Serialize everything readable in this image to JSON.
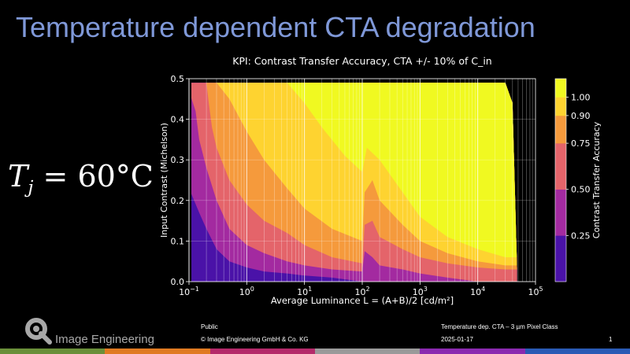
{
  "slide": {
    "title": "Temperature dependent CTA degradation",
    "formula": {
      "base": "T",
      "subscript": "j",
      "rest": "= 60°C"
    }
  },
  "footer": {
    "brand": "Image Engineering",
    "classification": "Public",
    "copyright": "© Image Engineering GmbH & Co. KG",
    "doc_title": "Temperature dep. CTA – 3 µm Pixel Class",
    "date": "2025-01-17",
    "page_number": "1",
    "stripe_colors": [
      "#6a8f3a",
      "#e07a22",
      "#b52a6a",
      "#9a9a9a",
      "#8b2ab0",
      "#2a5ab5"
    ]
  },
  "chart_data": {
    "type": "heatmap",
    "title": "KPI: Contrast Transfer Accuracy, CTA +/- 10% of C_in",
    "xlabel": "Average Luminance L = (A+B)/2 [cd/m²]",
    "ylabel": "Input Contrast (Michelson)",
    "x_scale": "log",
    "xlim": [
      0.1,
      100000
    ],
    "ylim": [
      0,
      0.5
    ],
    "x_ticks": [
      {
        "value": 0.1,
        "base": "10",
        "exp": "−1"
      },
      {
        "value": 1,
        "base": "10",
        "exp": "0"
      },
      {
        "value": 10,
        "base": "10",
        "exp": "1"
      },
      {
        "value": 100,
        "base": "10",
        "exp": "2"
      },
      {
        "value": 1000,
        "base": "10",
        "exp": "3"
      },
      {
        "value": 10000,
        "base": "10",
        "exp": "4"
      },
      {
        "value": 100000,
        "base": "10",
        "exp": "5"
      }
    ],
    "y_ticks": [
      "0.0",
      "0.1",
      "0.2",
      "0.3",
      "0.4",
      "0.5"
    ],
    "grid": true,
    "colorbar": {
      "label": "Contrast Transfer Accuracy",
      "ticks": [
        "0.25",
        "0.50",
        "0.75",
        "0.90",
        "1.00"
      ],
      "levels": [
        0,
        0.25,
        0.5,
        0.75,
        0.9,
        1.0,
        1.1
      ],
      "colors": [
        "#4a12a8",
        "#a32aa0",
        "#e4646a",
        "#f59a3c",
        "#fed330",
        "#f0f921"
      ]
    },
    "coverage": {
      "luminance_range": [
        0.11,
        40000
      ],
      "input_contrast_max": 0.49,
      "high_luminance_edge": [
        [
          30000,
          0.49
        ],
        [
          40000,
          0.44
        ],
        [
          48000,
          0.03
        ]
      ]
    },
    "contour_boundaries": [
      {
        "level": 0.25,
        "points": [
          [
            0.1,
            0.23
          ],
          [
            0.15,
            0.17
          ],
          [
            0.2,
            0.13
          ],
          [
            0.3,
            0.08
          ],
          [
            0.5,
            0.05
          ],
          [
            1,
            0.035
          ],
          [
            2,
            0.025
          ],
          [
            5,
            0.02
          ],
          [
            10,
            0.015
          ],
          [
            30,
            0.01
          ],
          [
            100,
            0.0
          ]
        ]
      },
      {
        "level": 0.5,
        "points": [
          [
            0.1,
            0.47
          ],
          [
            0.13,
            0.42
          ],
          [
            0.15,
            0.35
          ],
          [
            0.2,
            0.28
          ],
          [
            0.3,
            0.2
          ],
          [
            0.5,
            0.13
          ],
          [
            1,
            0.09
          ],
          [
            2,
            0.07
          ],
          [
            5,
            0.05
          ],
          [
            10,
            0.04
          ],
          [
            30,
            0.03
          ],
          [
            100,
            0.025
          ],
          [
            110,
            0.075
          ],
          [
            150,
            0.06
          ],
          [
            200,
            0.04
          ],
          [
            500,
            0.03
          ],
          [
            1000,
            0.02
          ],
          [
            3000,
            0.01
          ],
          [
            10000,
            0.0
          ]
        ]
      },
      {
        "level": 0.75,
        "points": [
          [
            0.2,
            0.49
          ],
          [
            0.22,
            0.44
          ],
          [
            0.25,
            0.38
          ],
          [
            0.3,
            0.33
          ],
          [
            0.5,
            0.25
          ],
          [
            1,
            0.19
          ],
          [
            2,
            0.15
          ],
          [
            5,
            0.12
          ],
          [
            10,
            0.09
          ],
          [
            30,
            0.06
          ],
          [
            100,
            0.045
          ],
          [
            110,
            0.14
          ],
          [
            150,
            0.15
          ],
          [
            200,
            0.11
          ],
          [
            500,
            0.08
          ],
          [
            1000,
            0.06
          ],
          [
            3000,
            0.045
          ],
          [
            10000,
            0.035
          ],
          [
            30000,
            0.03
          ]
        ]
      },
      {
        "level": 0.9,
        "points": [
          [
            0.3,
            0.49
          ],
          [
            0.5,
            0.45
          ],
          [
            1,
            0.37
          ],
          [
            2,
            0.3
          ],
          [
            5,
            0.23
          ],
          [
            10,
            0.18
          ],
          [
            30,
            0.13
          ],
          [
            100,
            0.1
          ],
          [
            110,
            0.22
          ],
          [
            150,
            0.25
          ],
          [
            200,
            0.2
          ],
          [
            500,
            0.14
          ],
          [
            1000,
            0.1
          ],
          [
            3000,
            0.07
          ],
          [
            10000,
            0.05
          ],
          [
            30000,
            0.04
          ]
        ]
      },
      {
        "level": 1.0,
        "points": [
          [
            5,
            0.49
          ],
          [
            10,
            0.44
          ],
          [
            20,
            0.38
          ],
          [
            50,
            0.31
          ],
          [
            100,
            0.27
          ],
          [
            120,
            0.33
          ],
          [
            200,
            0.3
          ],
          [
            500,
            0.22
          ],
          [
            1000,
            0.16
          ],
          [
            3000,
            0.11
          ],
          [
            10000,
            0.08
          ],
          [
            30000,
            0.06
          ]
        ]
      }
    ]
  }
}
